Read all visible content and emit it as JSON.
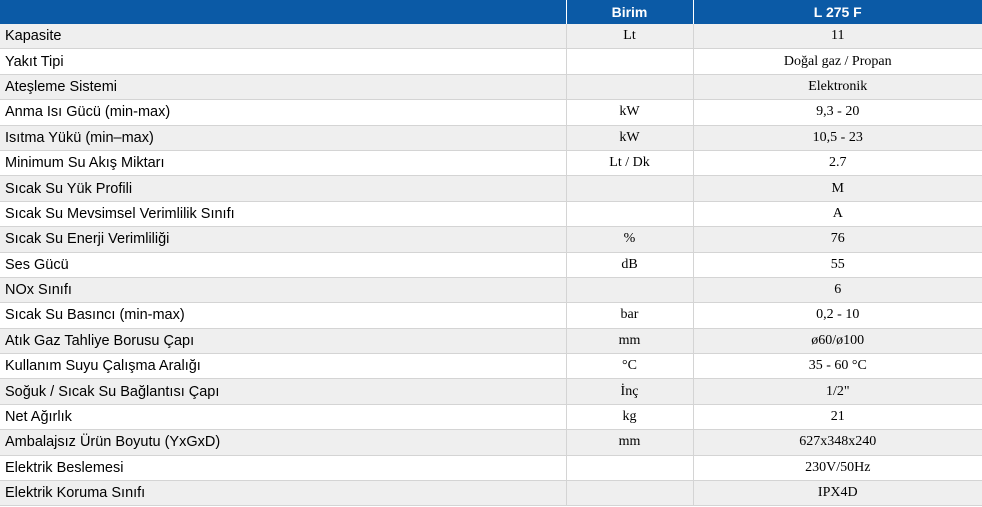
{
  "header": {
    "col1": "",
    "col2": "Birim",
    "col3": "L 275 F"
  },
  "rows": [
    {
      "name": "Kapasite",
      "unit": "Lt",
      "value": "11"
    },
    {
      "name": "Yakıt Tipi",
      "unit": "",
      "value": "Doğal gaz / Propan"
    },
    {
      "name": "Ateşleme Sistemi",
      "unit": "",
      "value": "Elektronik"
    },
    {
      "name": "Anma Isı Gücü (min-max)",
      "unit": "kW",
      "value": "9,3 - 20"
    },
    {
      "name": "Isıtma Yükü (min–max)",
      "unit": "kW",
      "value": "10,5 - 23"
    },
    {
      "name": "Minimum Su Akış Miktarı",
      "unit": "Lt / Dk",
      "value": "2.7"
    },
    {
      "name": "Sıcak Su Yük Profili",
      "unit": "",
      "value": "M"
    },
    {
      "name": "Sıcak Su Mevsimsel Verimlilik Sınıfı",
      "unit": "",
      "value": "A"
    },
    {
      "name": "Sıcak Su Enerji Verimliliği",
      "unit": "%",
      "value": "76"
    },
    {
      "name": "Ses Gücü",
      "unit": "dB",
      "value": "55"
    },
    {
      "name": "NOx Sınıfı",
      "unit": "",
      "value": "6"
    },
    {
      "name": "Sıcak Su Basıncı (min-max)",
      "unit": "bar",
      "value": "0,2 - 10"
    },
    {
      "name": "Atık Gaz Tahliye Borusu Çapı",
      "unit": "mm",
      "value": "ø60/ø100"
    },
    {
      "name": "Kullanım Suyu Çalışma Aralığı",
      "unit": "°C",
      "value": "35 - 60 °C"
    },
    {
      "name": "Soğuk / Sıcak Su Bağlantısı Çapı",
      "unit": "İnç",
      "value": "1/2\""
    },
    {
      "name": "Net Ağırlık",
      "unit": "kg",
      "value": "21"
    },
    {
      "name": "Ambalajsız Ürün Boyutu (YxGxD)",
      "unit": "mm",
      "value": "627x348x240"
    },
    {
      "name": "Elektrik Beslemesi",
      "unit": "",
      "value": "230V/50Hz"
    },
    {
      "name": "Elektrik Koruma Sınıfı",
      "unit": "",
      "value": "IPX4D"
    }
  ]
}
